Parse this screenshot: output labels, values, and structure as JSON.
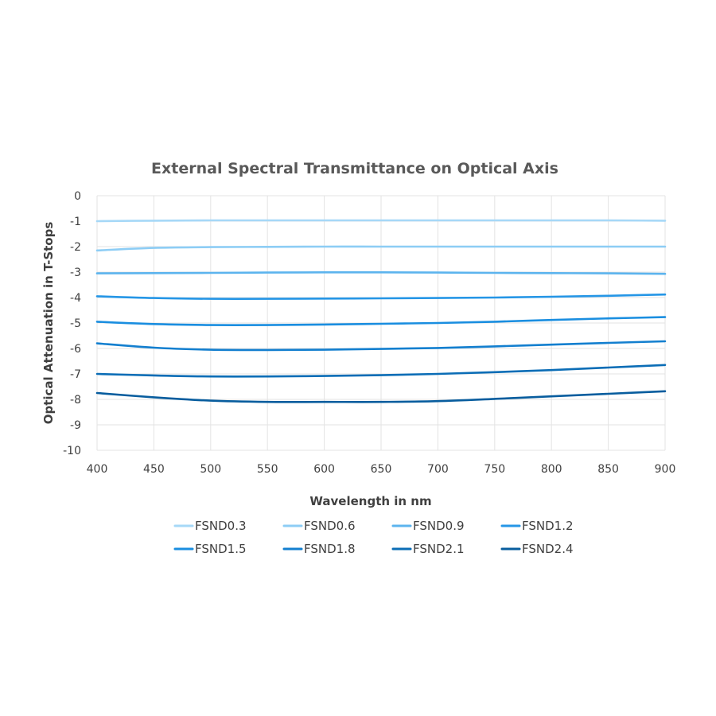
{
  "chart_data": {
    "type": "line",
    "title": "External Spectral Transmittance on Optical Axis",
    "xlabel": "Wavelength in nm",
    "ylabel": "Optical Attenuation in T-Stops",
    "xlim": [
      400,
      900
    ],
    "ylim": [
      -10,
      0
    ],
    "x_ticks": [
      400,
      450,
      500,
      550,
      600,
      650,
      700,
      750,
      800,
      850,
      900
    ],
    "y_ticks": [
      0,
      -1,
      -2,
      -3,
      -4,
      -5,
      -6,
      -7,
      -8,
      -9,
      -10
    ],
    "grid": true,
    "legend_position": "bottom",
    "x": [
      400,
      450,
      500,
      550,
      600,
      650,
      700,
      750,
      800,
      850,
      900
    ],
    "series": [
      {
        "name": "FSND0.3",
        "color": "#a6d8f7",
        "values": [
          -1.0,
          -0.98,
          -0.97,
          -0.97,
          -0.97,
          -0.97,
          -0.97,
          -0.97,
          -0.97,
          -0.97,
          -0.98
        ]
      },
      {
        "name": "FSND0.6",
        "color": "#8dcdf5",
        "values": [
          -2.15,
          -2.05,
          -2.02,
          -2.01,
          -2.0,
          -2.0,
          -2.0,
          -2.0,
          -2.0,
          -2.0,
          -2.0
        ]
      },
      {
        "name": "FSND0.9",
        "color": "#5cb4ee",
        "values": [
          -3.05,
          -3.04,
          -3.03,
          -3.02,
          -3.01,
          -3.01,
          -3.02,
          -3.03,
          -3.04,
          -3.05,
          -3.07
        ]
      },
      {
        "name": "FSND1.2",
        "color": "#2596e6",
        "values": [
          -3.95,
          -4.02,
          -4.05,
          -4.05,
          -4.04,
          -4.03,
          -4.02,
          -4.0,
          -3.97,
          -3.93,
          -3.88
        ]
      },
      {
        "name": "FSND1.5",
        "color": "#1a8ee0",
        "values": [
          -4.95,
          -5.04,
          -5.08,
          -5.08,
          -5.06,
          -5.03,
          -5.0,
          -4.95,
          -4.88,
          -4.82,
          -4.77
        ]
      },
      {
        "name": "FSND1.8",
        "color": "#137fcf",
        "values": [
          -5.8,
          -5.97,
          -6.05,
          -6.06,
          -6.05,
          -6.02,
          -5.98,
          -5.92,
          -5.85,
          -5.78,
          -5.72
        ]
      },
      {
        "name": "FSND2.1",
        "color": "#0b6db6",
        "values": [
          -7.0,
          -7.06,
          -7.1,
          -7.1,
          -7.08,
          -7.05,
          -7.0,
          -6.93,
          -6.85,
          -6.75,
          -6.65
        ]
      },
      {
        "name": "FSND2.4",
        "color": "#085d9e",
        "values": [
          -7.75,
          -7.92,
          -8.05,
          -8.1,
          -8.1,
          -8.1,
          -8.07,
          -7.98,
          -7.88,
          -7.78,
          -7.68
        ]
      }
    ]
  }
}
